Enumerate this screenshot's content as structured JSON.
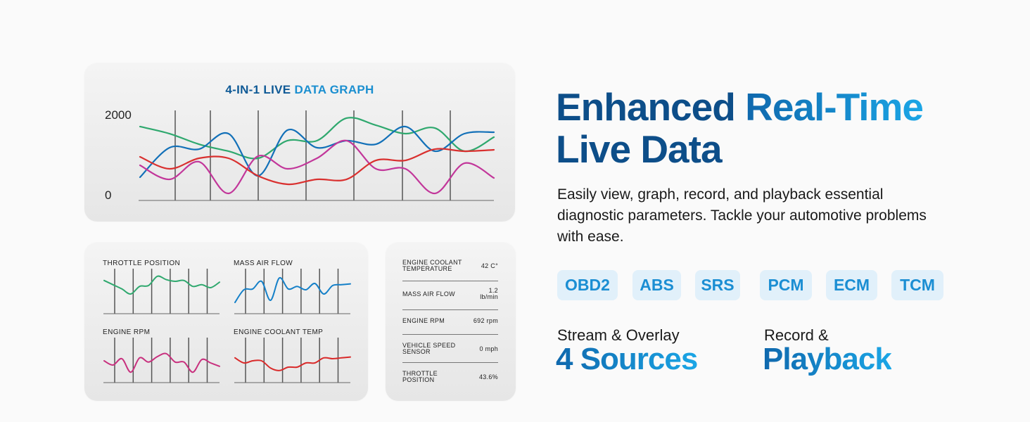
{
  "main_graph": {
    "title_part1": "4-IN-1 LIVE",
    "title_part2": "DATA GRAPH",
    "y_max_label": "2000",
    "y_min_label": "0"
  },
  "chart_data": [
    {
      "type": "line",
      "title": "4-IN-1 LIVE DATA GRAPH",
      "ylim": [
        0,
        2000
      ],
      "yticks": [
        "0",
        "2000"
      ],
      "grid": "vertical",
      "series": [
        {
          "color": "#2fa86e",
          "values": [
            1675,
            1512,
            1268,
            1106,
            943,
            1350,
            1350,
            1870,
            1707,
            1512,
            1642,
            1106,
            1431
          ]
        },
        {
          "color": "#1270b8",
          "values": [
            504,
            1187,
            1154,
            1512,
            537,
            1593,
            1187,
            1350,
            1268,
            1675,
            1106,
            1512,
            1545
          ]
        },
        {
          "color": "#c2369a",
          "values": [
            780,
            455,
            862,
            130,
            992,
            699,
            943,
            1350,
            699,
            699,
            130,
            829,
            488
          ]
        },
        {
          "color": "#d9302f",
          "values": [
            976,
            699,
            943,
            943,
            537,
            341,
            455,
            455,
            894,
            894,
            1154,
            1106,
            1138
          ]
        }
      ]
    },
    {
      "type": "line",
      "title": "THROTTLE POSITION",
      "color": "#2fa86e",
      "values": [
        72,
        62,
        52,
        40,
        58,
        60,
        82,
        74,
        70,
        72,
        58,
        62,
        55,
        68
      ]
    },
    {
      "type": "line",
      "title": "MASS AIR FLOW",
      "color": "#1580c8",
      "values": [
        20,
        50,
        52,
        70,
        25,
        78,
        52,
        58,
        50,
        65,
        40,
        60,
        62,
        64
      ]
    },
    {
      "type": "line",
      "title": "ENGINE RPM",
      "color": "#c8307e",
      "values": [
        45,
        35,
        50,
        18,
        52,
        42,
        55,
        62,
        42,
        42,
        18,
        48,
        40,
        32
      ]
    },
    {
      "type": "line",
      "title": "ENGINE COOLANT TEMP",
      "color": "#d92a2a",
      "values": [
        52,
        40,
        45,
        45,
        28,
        22,
        30,
        30,
        40,
        40,
        52,
        50,
        52,
        54
      ]
    }
  ],
  "mini_graphs": [
    "THROTTLE POSITION",
    "MASS AIR FLOW",
    "ENGINE RPM",
    "ENGINE COOLANT TEMP"
  ],
  "readings": [
    {
      "label": "ENGINE COOLANT TEMPERATURE",
      "value": "42 C°"
    },
    {
      "label": "MASS AIR FLOW",
      "value": "1.2 lb/min"
    },
    {
      "label": "ENGINE RPM",
      "value": "692 rpm"
    },
    {
      "label": "VEHICLE SPEED SENSOR",
      "value": "0 mph"
    },
    {
      "label": "THROTTLE POSITION",
      "value": "43.6%"
    }
  ],
  "headline": {
    "part1": "Enhanced",
    "part2": "Real-Time",
    "line2": "Live Data"
  },
  "description": "Easily view, graph, record, and playback essential diagnostic parameters. Tackle your automotive problems with ease.",
  "systems": [
    "OBD2",
    "ABS",
    "SRS",
    "PCM",
    "ECM",
    "TCM"
  ],
  "features": [
    {
      "small": "Stream & Overlay",
      "big": "4 Sources"
    },
    {
      "small": "Record &",
      "big": "Playback"
    }
  ],
  "colors": {
    "dark_blue": "#0d4e89",
    "light_blue": "#1ba6e6",
    "chip_bg": "#e1f0fa"
  }
}
